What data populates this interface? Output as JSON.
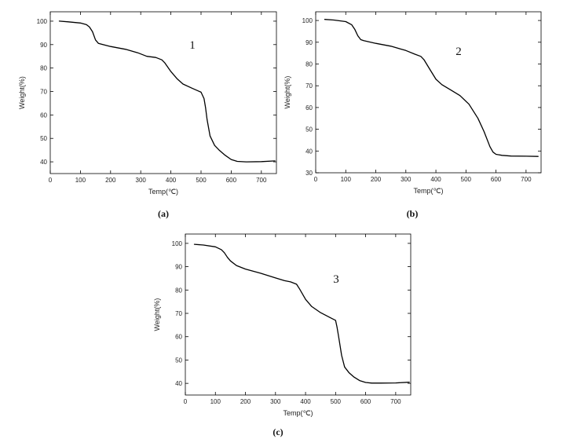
{
  "chart_data": [
    {
      "type": "line",
      "panel_caption": "(a)",
      "curve_label": "1",
      "xlabel": "Temp(℃)",
      "ylabel": "Weight(%)",
      "xlim": [
        0,
        750
      ],
      "ylim": [
        35,
        104
      ],
      "xticks": [
        0,
        100,
        200,
        300,
        400,
        500,
        600,
        700
      ],
      "yticks": [
        40,
        50,
        60,
        70,
        80,
        90,
        100
      ],
      "grid": false,
      "series": [
        {
          "x": [
            30,
            60,
            100,
            120,
            130,
            140,
            150,
            160,
            200,
            250,
            290,
            320,
            350,
            370,
            380,
            400,
            420,
            440,
            470,
            500,
            510,
            515,
            520,
            530,
            545,
            560,
            580,
            600,
            620,
            650,
            700,
            745
          ],
          "y": [
            100,
            99.7,
            99.2,
            98.5,
            97.5,
            95.5,
            92,
            90.5,
            89.2,
            88,
            86.5,
            85,
            84.5,
            83.5,
            82.2,
            78.5,
            75.5,
            73.2,
            71.4,
            69.7,
            67,
            63,
            58,
            51,
            47,
            45,
            42.8,
            41,
            40.2,
            40,
            40.1,
            40.4
          ]
        }
      ]
    },
    {
      "type": "line",
      "panel_caption": "(b)",
      "curve_label": "2",
      "xlabel": "Temp(℃)",
      "ylabel": "Weight(%)",
      "xlim": [
        0,
        750
      ],
      "ylim": [
        30,
        104
      ],
      "xticks": [
        0,
        100,
        200,
        300,
        400,
        500,
        600,
        700
      ],
      "yticks": [
        30,
        40,
        50,
        60,
        70,
        80,
        90,
        100
      ],
      "grid": false,
      "series": [
        {
          "x": [
            30,
            60,
            100,
            120,
            130,
            140,
            150,
            160,
            200,
            250,
            300,
            330,
            350,
            360,
            380,
            400,
            420,
            450,
            480,
            510,
            540,
            560,
            580,
            590,
            600,
            620,
            650,
            700,
            740
          ],
          "y": [
            100.5,
            100.2,
            99.5,
            98,
            96,
            93,
            91.2,
            90.7,
            89.5,
            88.2,
            86.2,
            84.5,
            83.5,
            82,
            77.5,
            73,
            70.5,
            68,
            65.5,
            61.5,
            55,
            49,
            42,
            39.5,
            38.5,
            38,
            37.7,
            37.6,
            37.5
          ]
        }
      ]
    },
    {
      "type": "line",
      "panel_caption": "(c)",
      "curve_label": "3",
      "xlabel": "Temp(℃)",
      "ylabel": "Weight(%)",
      "xlim": [
        0,
        750
      ],
      "ylim": [
        35,
        104
      ],
      "xticks": [
        0,
        100,
        200,
        300,
        400,
        500,
        600,
        700
      ],
      "yticks": [
        40,
        50,
        60,
        70,
        80,
        90,
        100
      ],
      "grid": false,
      "series": [
        {
          "x": [
            30,
            60,
            100,
            120,
            130,
            140,
            150,
            170,
            200,
            250,
            300,
            330,
            350,
            370,
            380,
            400,
            420,
            450,
            480,
            500,
            505,
            510,
            520,
            530,
            545,
            560,
            580,
            600,
            620,
            650,
            700,
            745
          ],
          "y": [
            99.6,
            99.3,
            98.5,
            97.3,
            96,
            94,
            92.5,
            90.5,
            89,
            87.2,
            85.2,
            84,
            83.5,
            82.5,
            80.5,
            76,
            73,
            70.3,
            68.3,
            67,
            64,
            60,
            52,
            47,
            44.5,
            42.8,
            41.2,
            40.4,
            40.1,
            40.1,
            40.2,
            40.5
          ]
        }
      ]
    }
  ]
}
